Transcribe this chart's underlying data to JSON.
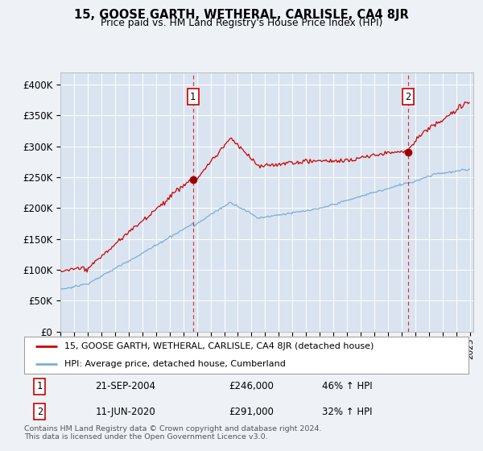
{
  "title": "15, GOOSE GARTH, WETHERAL, CARLISLE, CA4 8JR",
  "subtitle": "Price paid vs. HM Land Registry's House Price Index (HPI)",
  "background_color": "#eef2f7",
  "plot_bg_color": "#dae4f0",
  "grid_color": "#ffffff",
  "red_line_color": "#cc0000",
  "blue_line_color": "#7aafd4",
  "marker1_date": "21-SEP-2004",
  "marker1_price": 246000,
  "marker1_hpi_pct": "46% ↑ HPI",
  "marker2_date": "11-JUN-2020",
  "marker2_price": 291000,
  "marker2_hpi_pct": "32% ↑ HPI",
  "legend_label_red": "15, GOOSE GARTH, WETHERAL, CARLISLE, CA4 8JR (detached house)",
  "legend_label_blue": "HPI: Average price, detached house, Cumberland",
  "footer": "Contains HM Land Registry data © Crown copyright and database right 2024.\nThis data is licensed under the Open Government Licence v3.0.",
  "ylim": [
    0,
    420000
  ],
  "yticks": [
    0,
    50000,
    100000,
    150000,
    200000,
    250000,
    300000,
    350000,
    400000
  ],
  "ytick_labels": [
    "£0",
    "£50K",
    "£100K",
    "£150K",
    "£200K",
    "£250K",
    "£300K",
    "£350K",
    "£400K"
  ]
}
